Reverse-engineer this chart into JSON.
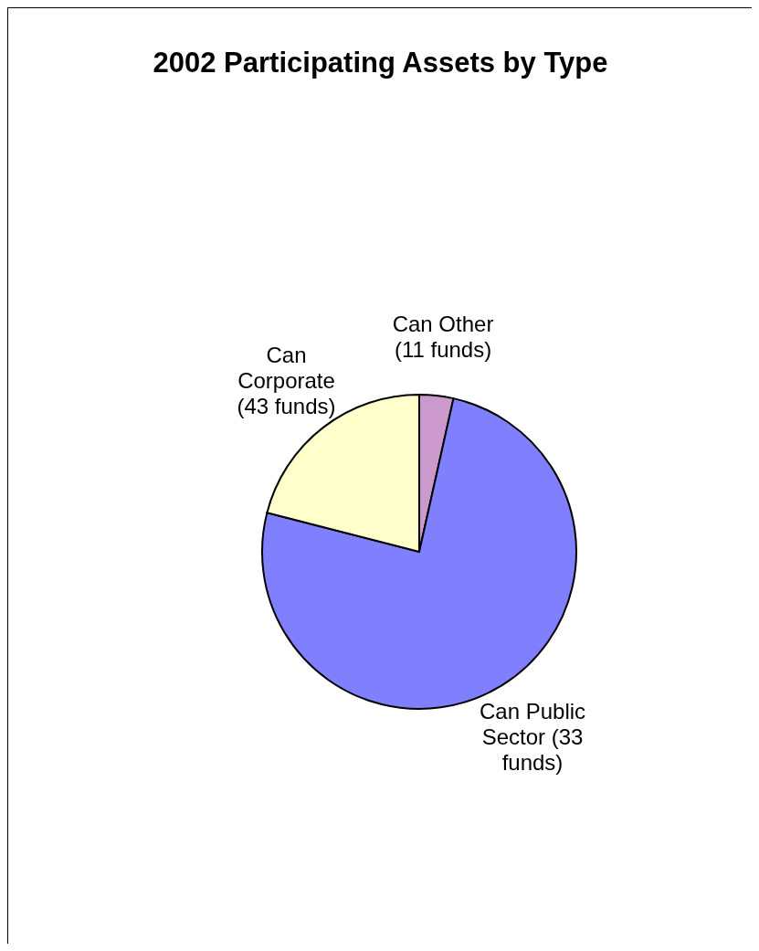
{
  "chart_data": {
    "type": "pie",
    "title": "2002 Participating Assets by Type",
    "categories": [
      "Can Other (11 funds)",
      "Can Public Sector (33 funds)",
      "Can Corporate (43 funds)"
    ],
    "values": [
      3.5,
      75.5,
      21
    ],
    "colors": [
      "#cc99cc",
      "#8080ff",
      "#ffffcc"
    ],
    "legend": false
  }
}
